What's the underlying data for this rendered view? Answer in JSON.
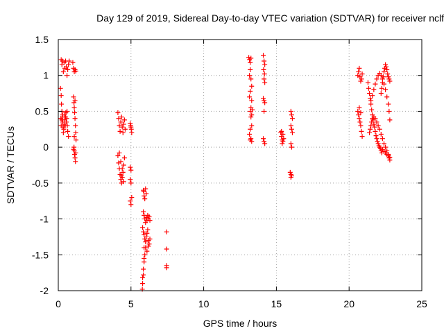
{
  "chart_data": {
    "type": "scatter",
    "title": "Day 129 of 2019, Sidereal Day-to-day VTEC variation (SDTVAR) for receiver nclf",
    "xlabel": "GPS time / hours",
    "ylabel": "SDTVAR / TECUs",
    "xlim": [
      0,
      25
    ],
    "ylim": [
      -2,
      1.5
    ],
    "xticks": [
      0,
      5,
      10,
      15,
      20,
      25
    ],
    "xtick_labels": [
      "0",
      "5",
      "10",
      "15",
      "20",
      "25"
    ],
    "yticks": [
      -2,
      -1.5,
      -1,
      -0.5,
      0,
      0.5,
      1,
      1.5
    ],
    "ytick_labels": [
      "-2",
      "-1.5",
      "-1",
      "-0.5",
      "0",
      "0.5",
      "1",
      "1.5"
    ],
    "grid": true,
    "marker": "+",
    "color": "#ff0000",
    "series": [
      {
        "name": "SDTVAR",
        "points": [
          [
            0.2,
            1.22
          ],
          [
            0.25,
            1.15
          ],
          [
            0.3,
            1.2
          ],
          [
            0.35,
            1.05
          ],
          [
            0.4,
            1.18
          ],
          [
            0.45,
            1.1
          ],
          [
            0.5,
            1.2
          ],
          [
            0.55,
            1.12
          ],
          [
            0.6,
            1.0
          ],
          [
            0.65,
            1.08
          ],
          [
            0.7,
            1.15
          ],
          [
            0.75,
            1.2
          ],
          [
            0.15,
            0.82
          ],
          [
            0.2,
            0.72
          ],
          [
            0.22,
            0.6
          ],
          [
            0.25,
            0.5
          ],
          [
            0.28,
            0.42
          ],
          [
            0.3,
            0.35
          ],
          [
            0.33,
            0.28
          ],
          [
            0.35,
            0.2
          ],
          [
            0.38,
            0.25
          ],
          [
            0.4,
            0.32
          ],
          [
            0.42,
            0.45
          ],
          [
            0.45,
            0.38
          ],
          [
            0.48,
            0.3
          ],
          [
            0.5,
            0.42
          ],
          [
            0.52,
            0.48
          ],
          [
            0.55,
            0.35
          ],
          [
            0.58,
            0.4
          ],
          [
            0.6,
            0.5
          ],
          [
            0.62,
            0.3
          ],
          [
            0.65,
            0.22
          ],
          [
            0.7,
            0.15
          ],
          [
            0.18,
            0.4
          ],
          [
            0.2,
            0.3
          ],
          [
            0.25,
            0.38
          ],
          [
            0.3,
            0.45
          ],
          [
            1.0,
            1.18
          ],
          [
            1.05,
            1.1
          ],
          [
            1.1,
            1.05
          ],
          [
            1.15,
            1.08
          ],
          [
            1.2,
            1.06
          ],
          [
            1.05,
            0.7
          ],
          [
            1.08,
            0.62
          ],
          [
            1.1,
            0.55
          ],
          [
            1.12,
            0.48
          ],
          [
            1.15,
            0.4
          ],
          [
            1.18,
            0.3
          ],
          [
            1.2,
            0.2
          ],
          [
            1.22,
            0.1
          ],
          [
            1.15,
            0.65
          ],
          [
            1.1,
            0.15
          ],
          [
            1.08,
            0.0
          ],
          [
            1.1,
            -0.05
          ],
          [
            1.12,
            -0.1
          ],
          [
            1.15,
            -0.15
          ],
          [
            1.18,
            -0.2
          ],
          [
            1.05,
            -0.03
          ],
          [
            1.2,
            -0.08
          ],
          [
            4.1,
            0.48
          ],
          [
            4.15,
            0.4
          ],
          [
            4.2,
            0.3
          ],
          [
            4.25,
            0.22
          ],
          [
            4.3,
            0.35
          ],
          [
            4.35,
            0.42
          ],
          [
            4.4,
            0.28
          ],
          [
            4.45,
            0.2
          ],
          [
            4.5,
            0.32
          ],
          [
            4.55,
            0.38
          ],
          [
            4.6,
            0.25
          ],
          [
            4.1,
            -0.12
          ],
          [
            4.15,
            -0.22
          ],
          [
            4.2,
            -0.3
          ],
          [
            4.25,
            -0.38
          ],
          [
            4.3,
            -0.45
          ],
          [
            4.35,
            -0.5
          ],
          [
            4.4,
            -0.42
          ],
          [
            4.45,
            -0.35
          ],
          [
            4.5,
            -0.25
          ],
          [
            4.55,
            -0.15
          ],
          [
            4.2,
            -0.08
          ],
          [
            4.3,
            -0.2
          ],
          [
            4.4,
            -0.3
          ],
          [
            4.5,
            -0.48
          ],
          [
            4.35,
            -0.4
          ],
          [
            4.95,
            0.33
          ],
          [
            5.0,
            0.28
          ],
          [
            5.05,
            0.2
          ],
          [
            4.98,
            0.3
          ],
          [
            5.02,
            0.25
          ],
          [
            4.95,
            -0.28
          ],
          [
            5.0,
            -0.32
          ],
          [
            4.95,
            -0.45
          ],
          [
            5.0,
            -0.5
          ],
          [
            4.95,
            -0.75
          ],
          [
            5.0,
            -0.8
          ],
          [
            5.05,
            -0.7
          ],
          [
            5.85,
            -0.6
          ],
          [
            5.9,
            -0.68
          ],
          [
            5.95,
            -0.72
          ],
          [
            6.0,
            -0.58
          ],
          [
            6.05,
            -0.65
          ],
          [
            5.88,
            -0.62
          ],
          [
            5.85,
            -0.9
          ],
          [
            5.9,
            -0.95
          ],
          [
            5.95,
            -1.0
          ],
          [
            6.0,
            -1.05
          ],
          [
            6.05,
            -0.98
          ],
          [
            6.1,
            -1.02
          ],
          [
            6.15,
            -0.95
          ],
          [
            6.2,
            -1.0
          ],
          [
            6.25,
            -0.97
          ],
          [
            6.3,
            -1.02
          ],
          [
            5.8,
            -1.12
          ],
          [
            5.85,
            -1.18
          ],
          [
            5.9,
            -1.22
          ],
          [
            5.95,
            -1.28
          ],
          [
            6.0,
            -1.32
          ],
          [
            6.05,
            -1.25
          ],
          [
            6.1,
            -1.2
          ],
          [
            6.15,
            -1.15
          ],
          [
            6.2,
            -1.3
          ],
          [
            6.25,
            -1.35
          ],
          [
            6.3,
            -1.28
          ],
          [
            6.0,
            -1.4
          ],
          [
            6.1,
            -1.45
          ],
          [
            6.2,
            -1.38
          ],
          [
            5.9,
            -1.4
          ],
          [
            5.9,
            -1.6
          ],
          [
            5.85,
            -1.7
          ],
          [
            5.85,
            -1.78
          ],
          [
            5.8,
            -1.82
          ],
          [
            5.8,
            -1.9
          ],
          [
            5.78,
            -1.98
          ],
          [
            5.95,
            -1.5
          ],
          [
            5.9,
            -1.55
          ],
          [
            7.45,
            -1.18
          ],
          [
            7.45,
            -1.42
          ],
          [
            7.45,
            -1.68
          ],
          [
            7.45,
            -1.65
          ],
          [
            13.1,
            1.25
          ],
          [
            13.15,
            1.22
          ],
          [
            13.2,
            1.18
          ],
          [
            13.25,
            1.24
          ],
          [
            13.2,
            1.08
          ],
          [
            13.15,
            1.0
          ],
          [
            13.25,
            0.95
          ],
          [
            13.3,
            0.85
          ],
          [
            13.2,
            0.78
          ],
          [
            13.15,
            0.7
          ],
          [
            13.3,
            0.65
          ],
          [
            13.25,
            0.55
          ],
          [
            13.2,
            0.5
          ],
          [
            13.3,
            0.45
          ],
          [
            13.35,
            0.52
          ],
          [
            13.25,
            0.42
          ],
          [
            13.3,
            0.3
          ],
          [
            13.2,
            0.25
          ],
          [
            13.15,
            0.18
          ],
          [
            13.25,
            0.12
          ],
          [
            13.2,
            0.1
          ],
          [
            13.3,
            0.08
          ],
          [
            14.1,
            1.28
          ],
          [
            14.15,
            1.2
          ],
          [
            14.2,
            1.15
          ],
          [
            14.12,
            1.08
          ],
          [
            14.18,
            1.02
          ],
          [
            14.15,
            0.95
          ],
          [
            14.2,
            0.9
          ],
          [
            14.1,
            0.68
          ],
          [
            14.15,
            0.65
          ],
          [
            14.2,
            0.62
          ],
          [
            14.15,
            0.5
          ],
          [
            14.1,
            0.12
          ],
          [
            14.15,
            0.08
          ],
          [
            14.2,
            0.05
          ],
          [
            15.3,
            0.2
          ],
          [
            15.35,
            0.15
          ],
          [
            15.4,
            0.1
          ],
          [
            15.45,
            0.18
          ],
          [
            15.5,
            0.12
          ],
          [
            15.4,
            0.05
          ],
          [
            15.35,
            0.22
          ],
          [
            15.45,
            0.08
          ],
          [
            16.0,
            0.5
          ],
          [
            16.05,
            0.45
          ],
          [
            16.1,
            0.4
          ],
          [
            16.0,
            0.3
          ],
          [
            16.05,
            0.25
          ],
          [
            16.1,
            0.2
          ],
          [
            16.0,
            0.05
          ],
          [
            16.05,
            0.0
          ],
          [
            15.95,
            -0.35
          ],
          [
            16.0,
            -0.38
          ],
          [
            16.05,
            -0.4
          ],
          [
            16.0,
            -0.42
          ],
          [
            20.6,
            0.5
          ],
          [
            20.65,
            0.45
          ],
          [
            20.7,
            0.4
          ],
          [
            20.75,
            0.35
          ],
          [
            20.8,
            0.3
          ],
          [
            20.85,
            0.22
          ],
          [
            20.9,
            0.15
          ],
          [
            20.7,
            0.55
          ],
          [
            20.8,
            0.48
          ],
          [
            20.6,
            1.0
          ],
          [
            20.65,
            1.05
          ],
          [
            20.7,
            1.1
          ],
          [
            20.75,
            0.98
          ],
          [
            20.8,
            0.92
          ],
          [
            20.85,
            0.95
          ],
          [
            20.9,
            1.02
          ],
          [
            21.3,
            0.9
          ],
          [
            21.35,
            0.82
          ],
          [
            21.4,
            0.75
          ],
          [
            21.45,
            0.68
          ],
          [
            21.5,
            0.6
          ],
          [
            21.55,
            0.52
          ],
          [
            21.6,
            0.45
          ],
          [
            21.65,
            0.38
          ],
          [
            21.7,
            0.32
          ],
          [
            21.75,
            0.28
          ],
          [
            21.8,
            0.22
          ],
          [
            21.85,
            0.16
          ],
          [
            21.9,
            0.12
          ],
          [
            21.95,
            0.08
          ],
          [
            22.0,
            0.05
          ],
          [
            22.05,
            0.02
          ],
          [
            22.1,
            0.0
          ],
          [
            22.15,
            -0.02
          ],
          [
            22.2,
            -0.05
          ],
          [
            22.25,
            -0.08
          ],
          [
            21.4,
            0.2
          ],
          [
            21.45,
            0.25
          ],
          [
            21.5,
            0.3
          ],
          [
            21.55,
            0.35
          ],
          [
            21.6,
            0.4
          ],
          [
            21.7,
            0.42
          ],
          [
            21.8,
            0.4
          ],
          [
            21.9,
            0.35
          ],
          [
            22.0,
            0.3
          ],
          [
            22.1,
            0.25
          ],
          [
            22.2,
            0.18
          ],
          [
            22.3,
            0.12
          ],
          [
            22.4,
            0.05
          ],
          [
            22.5,
            0.0
          ],
          [
            22.6,
            -0.05
          ],
          [
            22.7,
            -0.1
          ],
          [
            22.75,
            -0.15
          ],
          [
            22.8,
            -0.18
          ],
          [
            21.5,
            0.65
          ],
          [
            21.6,
            0.72
          ],
          [
            21.7,
            0.8
          ],
          [
            21.8,
            0.88
          ],
          [
            21.9,
            0.95
          ],
          [
            22.0,
            1.0
          ],
          [
            22.1,
            1.03
          ],
          [
            22.2,
            1.0
          ],
          [
            22.3,
            0.95
          ],
          [
            22.4,
            0.88
          ],
          [
            22.5,
            0.8
          ],
          [
            22.6,
            0.7
          ],
          [
            22.7,
            0.6
          ],
          [
            22.75,
            0.5
          ],
          [
            22.8,
            0.38
          ],
          [
            22.2,
            0.75
          ],
          [
            22.25,
            0.82
          ],
          [
            22.3,
            0.9
          ],
          [
            22.35,
            0.98
          ],
          [
            22.4,
            1.05
          ],
          [
            22.45,
            1.1
          ],
          [
            22.5,
            1.15
          ],
          [
            22.55,
            1.12
          ],
          [
            22.6,
            1.08
          ],
          [
            22.65,
            1.02
          ],
          [
            22.7,
            0.98
          ],
          [
            22.75,
            0.95
          ],
          [
            22.8,
            0.92
          ],
          [
            22.3,
            -0.03
          ],
          [
            22.4,
            -0.06
          ],
          [
            22.5,
            -0.08
          ],
          [
            22.6,
            -0.1
          ],
          [
            22.7,
            -0.12
          ],
          [
            22.8,
            -0.14
          ]
        ]
      }
    ]
  }
}
